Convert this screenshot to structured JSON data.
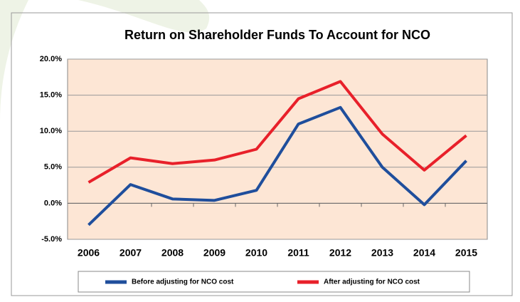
{
  "chart_data": {
    "type": "line",
    "title": "Return on Shareholder Funds To  Account for NCO",
    "categories": [
      "2006",
      "2007",
      "2008",
      "2009",
      "2010",
      "2011",
      "2012",
      "2013",
      "2014",
      "2015"
    ],
    "series": [
      {
        "name": "Before adjusting for NCO cost",
        "color": "#1f4e9c",
        "values": [
          -3.0,
          2.6,
          0.6,
          0.4,
          1.8,
          11.0,
          13.3,
          5.0,
          -0.2,
          5.9
        ]
      },
      {
        "name": "After adjusting for NCO cost",
        "color": "#e8202a",
        "values": [
          2.9,
          6.3,
          5.5,
          6.0,
          7.5,
          14.5,
          16.9,
          9.6,
          4.6,
          9.4
        ]
      }
    ],
    "ylim": [
      -5,
      20
    ],
    "yticks": [
      {
        "value": -5,
        "label": "-5.0%"
      },
      {
        "value": 0,
        "label": "0.0%"
      },
      {
        "value": 5,
        "label": "5.0%"
      },
      {
        "value": 10,
        "label": "10.0%"
      },
      {
        "value": 15,
        "label": "15.0%"
      },
      {
        "value": 20,
        "label": "20.0%"
      }
    ],
    "grid": true,
    "legend": "bottom"
  }
}
